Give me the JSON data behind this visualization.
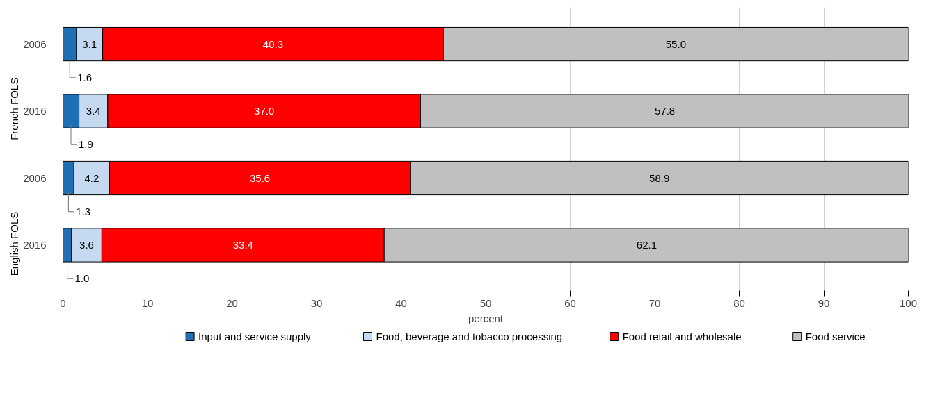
{
  "chart_data": {
    "type": "bar",
    "orientation": "horizontal",
    "stacked": true,
    "categories": [
      "2006",
      "2016",
      "2006",
      "2016"
    ],
    "annotations": [
      "French FOLS",
      "English FOLS"
    ],
    "xlabel": "percent",
    "xlim": [
      0,
      100
    ],
    "xticks": [
      0,
      10,
      20,
      30,
      40,
      50,
      60,
      70,
      80,
      90,
      100
    ],
    "grid": "x",
    "legend": "bottom",
    "series": [
      {
        "name": "Input and service supply",
        "color": "#1f6fb5",
        "values": [
          1.6,
          1.9,
          1.3,
          1.0
        ],
        "value_labels": [
          "1.6",
          "1.9",
          "1.3",
          "1.0"
        ]
      },
      {
        "name": "Food, beverage and tobacco processing",
        "color": "#c5daf0",
        "values": [
          3.1,
          3.4,
          4.2,
          3.6
        ],
        "value_labels": [
          "3.1",
          "3.4",
          "4.2",
          "3.6"
        ]
      },
      {
        "name": "Food retail and wholesale",
        "color": "#ff0000",
        "values": [
          40.3,
          37.0,
          35.6,
          33.4
        ],
        "value_labels": [
          "40.3",
          "37.0",
          "35.6",
          "33.4"
        ]
      },
      {
        "name": "Food service",
        "color": "#c0c0c0",
        "values": [
          55.0,
          57.8,
          58.9,
          62.1
        ],
        "value_labels": [
          "55.0",
          "57.8",
          "58.9",
          "62.1"
        ]
      }
    ]
  }
}
